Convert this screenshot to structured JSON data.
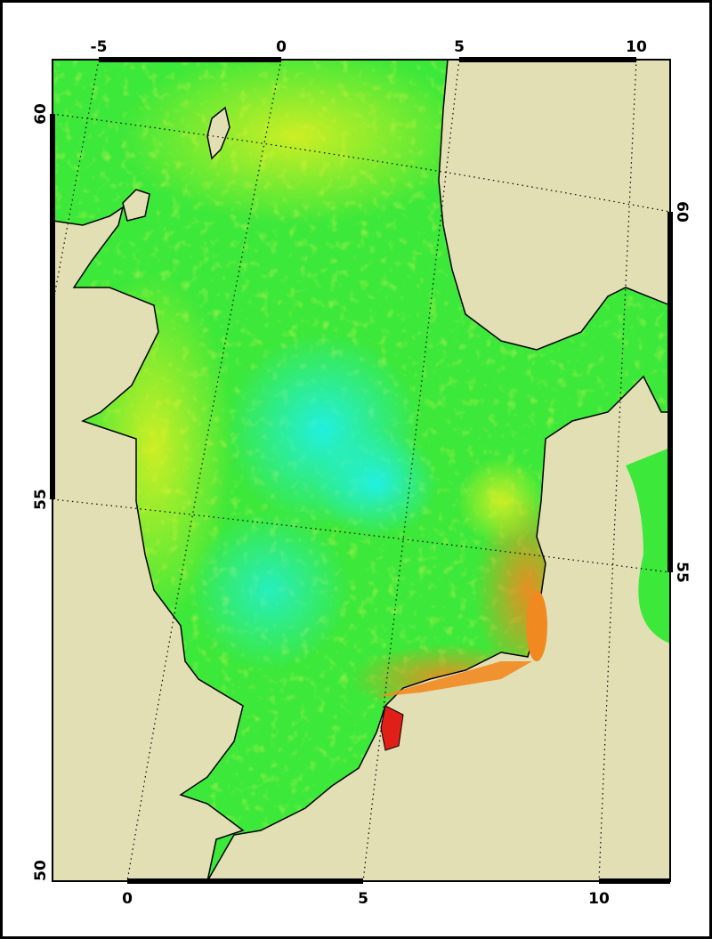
{
  "map": {
    "top_lon_labels": [
      "-5",
      "0",
      "5",
      "10"
    ],
    "bottom_lon_labels": [
      "0",
      "5",
      "10"
    ],
    "left_lat_labels": [
      "60",
      "55",
      "50"
    ],
    "right_lat_labels": [
      "60",
      "55"
    ],
    "colors": {
      "land": "#e3dfb4",
      "sea_low": "#20f0e8",
      "sea_mid": "#3ce83a",
      "sea_high": "#f0f020",
      "coastal_high": "#f08a20",
      "coastal_max": "#e02018",
      "coastline": "#000000"
    },
    "graticule": "dotted"
  }
}
